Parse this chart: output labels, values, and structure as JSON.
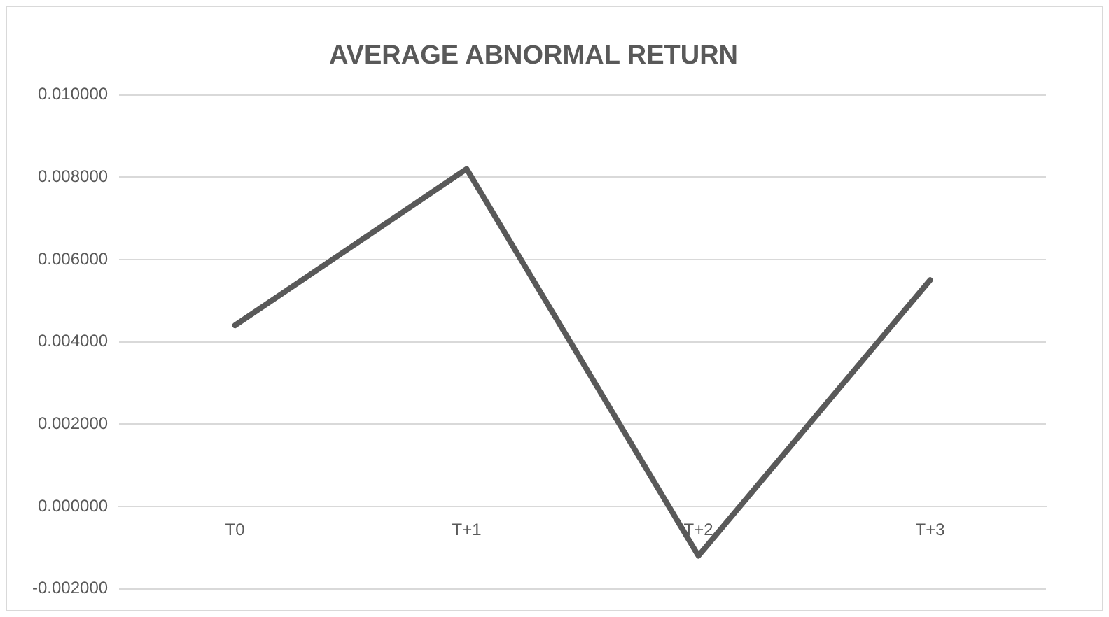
{
  "chart_data": {
    "type": "line",
    "title": "AVERAGE ABNORMAL RETURN",
    "categories": [
      "T0",
      "T+1",
      "T+2",
      "T+3"
    ],
    "series": [
      {
        "color": "#595959",
        "values": [
          0.0044,
          0.0082,
          -0.0012,
          0.0055
        ]
      }
    ],
    "ylim": [
      -0.002,
      0.01
    ],
    "yticks": [
      {
        "value": -0.002,
        "label": "-0.002000"
      },
      {
        "value": 0,
        "label": "0.000000"
      },
      {
        "value": 0.002,
        "label": "0.002000"
      },
      {
        "value": 0.004,
        "label": "0.004000"
      },
      {
        "value": 0.006,
        "label": "0.006000"
      },
      {
        "value": 0.008,
        "label": "0.008000"
      },
      {
        "value": 0.01,
        "label": "0.010000"
      }
    ],
    "grid": "y",
    "legend": false,
    "marker": "none",
    "line_style": "solid"
  }
}
